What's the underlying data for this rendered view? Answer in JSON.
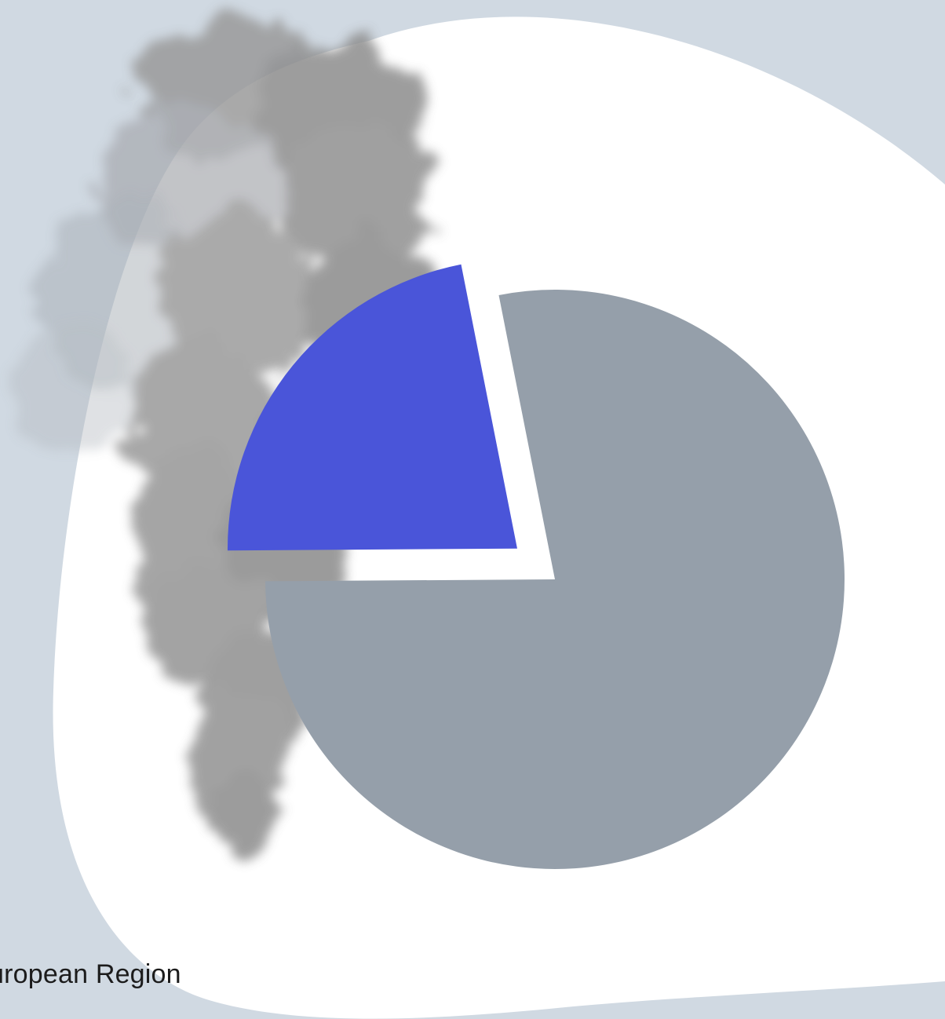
{
  "chart_data": {
    "type": "pie",
    "exploded": true,
    "slices": [
      {
        "value": 22,
        "color": "#4a55d9"
      },
      {
        "value": 78,
        "color": "#959faa"
      }
    ]
  },
  "region_label": "uropean Region",
  "colors": {
    "background": "#d0d9e2",
    "blob": "#ffffff",
    "smoke": "#8a8a8a"
  }
}
